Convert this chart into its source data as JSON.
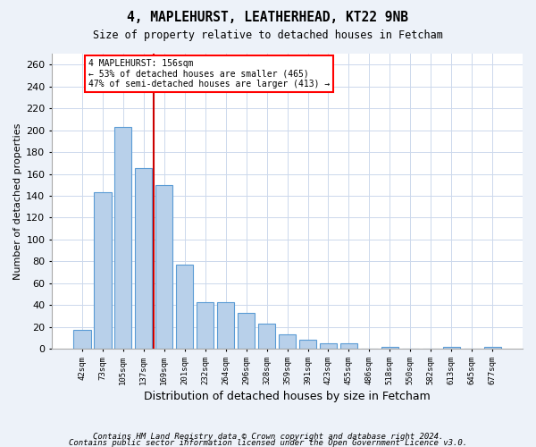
{
  "title": "4, MAPLEHURST, LEATHERHEAD, KT22 9NB",
  "subtitle": "Size of property relative to detached houses in Fetcham",
  "xlabel": "Distribution of detached houses by size in Fetcham",
  "ylabel": "Number of detached properties",
  "bar_labels": [
    "42sqm",
    "73sqm",
    "105sqm",
    "137sqm",
    "169sqm",
    "201sqm",
    "232sqm",
    "264sqm",
    "296sqm",
    "328sqm",
    "359sqm",
    "391sqm",
    "423sqm",
    "455sqm",
    "486sqm",
    "518sqm",
    "550sqm",
    "582sqm",
    "613sqm",
    "645sqm",
    "677sqm"
  ],
  "bar_values": [
    17,
    143,
    203,
    165,
    150,
    77,
    43,
    43,
    33,
    23,
    13,
    8,
    5,
    5,
    0,
    2,
    0,
    0,
    2,
    0,
    2
  ],
  "bar_color": "#b8d0ea",
  "bar_edgecolor": "#5a9bd5",
  "vline_x": 3.5,
  "vline_color": "#cc0000",
  "annotation_line1": "4 MAPLEHURST: 156sqm",
  "annotation_line2": "← 53% of detached houses are smaller (465)",
  "annotation_line3": "47% of semi-detached houses are larger (413) →",
  "ylim": [
    0,
    270
  ],
  "yticks": [
    0,
    20,
    40,
    60,
    80,
    100,
    120,
    140,
    160,
    180,
    200,
    220,
    240,
    260
  ],
  "footer_line1": "Contains HM Land Registry data © Crown copyright and database right 2024.",
  "footer_line2": "Contains public sector information licensed under the Open Government Licence v3.0.",
  "bg_color": "#edf2f9",
  "plot_bg_color": "#ffffff",
  "grid_color": "#ccd8ec"
}
